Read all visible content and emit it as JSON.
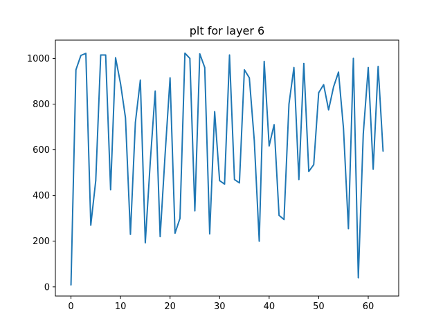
{
  "chart_data": {
    "type": "line",
    "title": "plt for layer 6",
    "xlabel": "",
    "ylabel": "",
    "xlim": [
      -3.15,
      66.15
    ],
    "ylim": [
      -40,
      1080
    ],
    "x_ticks": [
      0,
      10,
      20,
      30,
      40,
      50,
      60
    ],
    "y_ticks": [
      0,
      200,
      400,
      600,
      800,
      1000
    ],
    "grid": false,
    "legend": "none",
    "colors": {
      "line": "#1f77b4",
      "axes": "#000000",
      "background": "#ffffff"
    },
    "series": [
      {
        "x": [
          0,
          1,
          2,
          3,
          4,
          5,
          6,
          7,
          8,
          9,
          10,
          11,
          12,
          13,
          14,
          15,
          16,
          17,
          18,
          19,
          20,
          21,
          22,
          23,
          24,
          25,
          26,
          27,
          28,
          29,
          30,
          31,
          32,
          33,
          34,
          35,
          36,
          37,
          38,
          39,
          40,
          41,
          42,
          43,
          44,
          45,
          46,
          47,
          48,
          49,
          50,
          51,
          52,
          53,
          54,
          55,
          56,
          57,
          58,
          59,
          60,
          61,
          62,
          63
        ],
        "values": [
          8,
          950,
          1013,
          1022,
          270,
          465,
          1015,
          1015,
          425,
          1003,
          890,
          740,
          230,
          720,
          905,
          193,
          545,
          857,
          220,
          580,
          915,
          235,
          300,
          1023,
          1000,
          333,
          1020,
          960,
          232,
          767,
          465,
          450,
          1015,
          470,
          455,
          950,
          915,
          640,
          200,
          987,
          617,
          710,
          313,
          295,
          800,
          960,
          470,
          978,
          505,
          535,
          850,
          885,
          775,
          875,
          940,
          695,
          255,
          1000,
          40,
          670,
          960,
          515,
          965,
          593
        ]
      }
    ]
  }
}
